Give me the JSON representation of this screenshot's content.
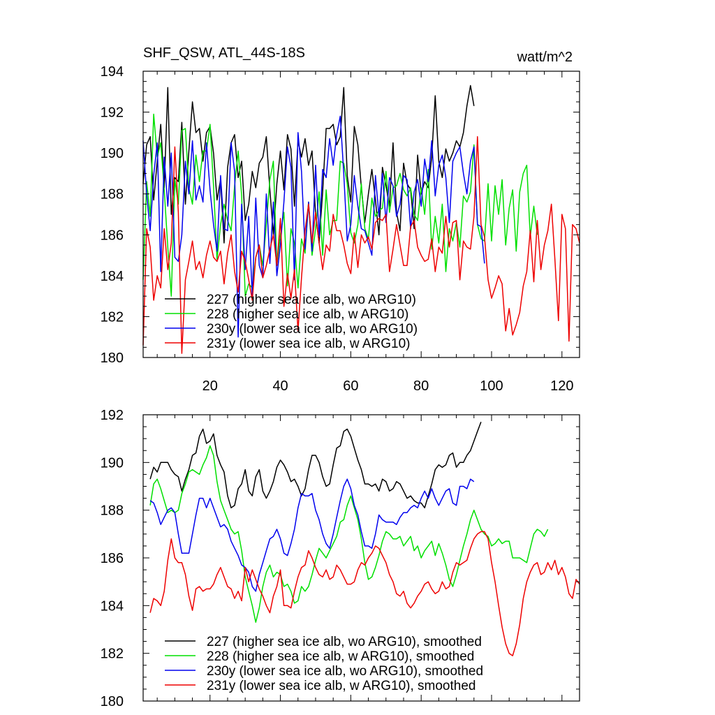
{
  "chart_data": [
    {
      "type": "line",
      "title": "SHF_QSW, ATL_44S-18S",
      "units": "watt/m^2",
      "xlim": [
        1,
        125
      ],
      "ylim": [
        180,
        194
      ],
      "xticks": [
        20,
        40,
        60,
        80,
        100,
        120
      ],
      "yticks": [
        180,
        182,
        184,
        186,
        188,
        190,
        192,
        194
      ],
      "show_x_tick_labels": true,
      "legend_position": "bottom-left",
      "series": [
        {
          "name": "227 (higher sea ice alb, wo ARG10)",
          "color": "#000000",
          "x_start": 1,
          "values": [
            188.5,
            190.4,
            190.8,
            187.7,
            189.6,
            191.4,
            188.3,
            193.2,
            187.0,
            188.8,
            188.6,
            191.5,
            187.5,
            190.1,
            192.5,
            191.0,
            191.2,
            189.6,
            191.0,
            191.3,
            190.0,
            187.7,
            188.7,
            185.6,
            189.3,
            190.5,
            190.9,
            188.8,
            189.6,
            186.7,
            187.5,
            189.1,
            188.3,
            189.5,
            189.8,
            190.8,
            188.2,
            186.0,
            188.5,
            190.1,
            188.2,
            190.9,
            190.2,
            187.4,
            190.6,
            189.8,
            190.7,
            189.4,
            190.1,
            187.0,
            185.6,
            188.1,
            191.2,
            191.2,
            191.4,
            190.4,
            190.8,
            193.2,
            188.9,
            187.6,
            191.3,
            190.4,
            188.3,
            186.6,
            188.0,
            189.2,
            187.7,
            186.0,
            189.3,
            188.4,
            187.4,
            190.5,
            187.1,
            186.2,
            189.5,
            188.5,
            188.2,
            186.3,
            189.9,
            188.0,
            188.6,
            188.3,
            189.8,
            192.8,
            189.6,
            188.8,
            190.2,
            189.6,
            190.0,
            190.6,
            190.3,
            191.0,
            192.3,
            193.3,
            192.3
          ]
        },
        {
          "name": "228 (higher sea ice alb, w ARG10)",
          "color": "#00e000",
          "x_start": 1,
          "values": [
            183.8,
            188.6,
            186.9,
            191.9,
            189.8,
            190.5,
            188.2,
            185.4,
            183.0,
            188.7,
            187.5,
            191.1,
            191.2,
            188.3,
            187.5,
            189.9,
            188.6,
            190.1,
            190.1,
            191.4,
            188.4,
            184.8,
            186.5,
            187.5,
            186.7,
            186.2,
            188.4,
            190.1,
            187.9,
            183.0,
            183.6,
            183.4,
            184.9,
            185.5,
            184.5,
            186.5,
            188.7,
            189.6,
            184.5,
            186.0,
            187.1,
            183.5,
            186.3,
            185.6,
            183.4,
            185.8,
            185.1,
            187.6,
            185.0,
            186.3,
            188.1,
            185.0,
            188.2,
            186.0,
            186.7,
            186.7,
            189.6,
            189.5,
            188.5,
            186.1,
            185.6,
            186.5,
            188.5,
            186.3,
            185.8,
            187.8,
            186.9,
            187.2,
            187.3,
            189.1,
            187.1,
            188.3,
            188.4,
            189.0,
            188.2,
            187.9,
            188.3,
            187.0,
            186.7,
            188.3,
            187.0,
            189.2,
            185.3,
            186.9,
            185.6,
            187.5,
            184.2,
            186.3,
            185.7,
            186.6,
            185.4,
            187.9,
            187.6,
            188.1,
            190.4,
            186.5,
            185.8,
            185.7,
            188.5,
            185.7,
            188.4,
            187.0,
            188.7,
            185.5,
            187.3,
            188.2,
            185.2,
            188.1,
            189.0,
            189.4,
            185.9,
            187.4,
            186.0
          ]
        },
        {
          "name": "230y (lower sea ice alb, wo ARG10)",
          "color": "#0000ee",
          "x_start": 1,
          "values": [
            190.6,
            188.0,
            186.2,
            188.9,
            190.5,
            184.2,
            189.8,
            187.4,
            190.0,
            184.9,
            184.7,
            186.0,
            189.6,
            188.0,
            190.6,
            187.7,
            188.4,
            187.6,
            190.5,
            188.2,
            186.5,
            185.2,
            188.9,
            186.3,
            186.2,
            190.5,
            189.1,
            181.0,
            187.5,
            184.3,
            186.9,
            183.0,
            187.8,
            184.5,
            183.9,
            188.0,
            184.6,
            187.6,
            184.0,
            185.5,
            187.6,
            190.3,
            189.3,
            183.8,
            191.0,
            189.1,
            185.3,
            187.6,
            185.2,
            189.4,
            185.9,
            189.2,
            188.8,
            190.7,
            189.4,
            190.9,
            191.8,
            189.0,
            185.7,
            186.5,
            188.9,
            187.4,
            186.3,
            186.2,
            185.6,
            185.0,
            188.9,
            186.9,
            189.0,
            186.6,
            188.8,
            188.4,
            186.9,
            187.5,
            188.9,
            188.7,
            186.3,
            188.1,
            188.7,
            187.4,
            189.7,
            188.6,
            190.6,
            187.9,
            189.4,
            189.9,
            188.8,
            186.6,
            189.6,
            190.0,
            190.3,
            189.0,
            188.0,
            189.6,
            190.3,
            186.5,
            186.4,
            184.6
          ]
        },
        {
          "name": "231y (lower sea ice alb, w ARG10)",
          "color": "#ee0000",
          "x_start": 1,
          "values": [
            180.6,
            186.3,
            185.4,
            182.8,
            184.0,
            183.4,
            186.3,
            184.3,
            185.6,
            190.3,
            187.1,
            180.2,
            183.8,
            184.7,
            185.7,
            184.3,
            184.7,
            183.9,
            185.0,
            185.7,
            184.9,
            184.7,
            185.2,
            183.6,
            185.1,
            186.0,
            184.2,
            183.2,
            185.2,
            184.7,
            183.8,
            182.8,
            184.9,
            185.5,
            183.9,
            184.5,
            185.3,
            186.0,
            184.5,
            186.8,
            182.5,
            184.1,
            182.9,
            184.3,
            181.3,
            183.9,
            186.2,
            187.5,
            185.6,
            187.1,
            185.6,
            184.3,
            185.5,
            185.2,
            187.0,
            186.2,
            186.2,
            185.5,
            184.6,
            184.1,
            186.1,
            184.4,
            186.0,
            185.6,
            185.9,
            185.3,
            186.6,
            186.8,
            186.7,
            187.0,
            184.2,
            185.3,
            186.5,
            185.5,
            184.5,
            184.5,
            186.4,
            186.7,
            185.4,
            185.0,
            184.7,
            184.8,
            185.8,
            184.2,
            185.4,
            185.1,
            186.9,
            185.4,
            186.6,
            186.7,
            183.8,
            185.7,
            185.4,
            185.3,
            186.9,
            190.8,
            186.5,
            185.9,
            183.8,
            182.9,
            183.4,
            184.0,
            183.6,
            181.3,
            182.4,
            181.1,
            181.6,
            182.2,
            183.5,
            184.2,
            186.2,
            183.7,
            186.7,
            184.3,
            185.5,
            186.2,
            187.5,
            184.8,
            181.8,
            187.0,
            186.3,
            180.8,
            186.5,
            186.3,
            185.6
          ]
        }
      ]
    },
    {
      "type": "line",
      "title": "",
      "xlim": [
        1,
        125
      ],
      "ylim": [
        180,
        192
      ],
      "xticks": [
        20,
        40,
        60,
        80,
        100,
        120
      ],
      "yticks": [
        180,
        182,
        184,
        186,
        188,
        190,
        192
      ],
      "show_x_tick_labels": false,
      "legend_position": "bottom-left",
      "series": [
        {
          "name": "227 (higher sea ice alb, wo ARG10), smoothed",
          "color": "#000000",
          "x_start": 3,
          "values": [
            189.3,
            189.8,
            189.6,
            190.0,
            190.0,
            190.0,
            189.7,
            189.5,
            189.4,
            188.8,
            189.3,
            189.7,
            190.3,
            190.4,
            191.1,
            191.4,
            190.8,
            190.9,
            191.2,
            190.3,
            189.9,
            189.6,
            188.6,
            188.1,
            188.2,
            188.9,
            189.1,
            189.7,
            188.8,
            188.6,
            189.4,
            189.7,
            188.8,
            188.5,
            188.8,
            189.2,
            189.8,
            190.1,
            189.9,
            189.6,
            189.2,
            189.3,
            189.0,
            188.6,
            188.9,
            189.7,
            190.3,
            190.3,
            190.0,
            189.4,
            189.0,
            189.1,
            189.9,
            190.6,
            190.7,
            191.3,
            191.4,
            191.1,
            190.6,
            190.1,
            189.7,
            189.1,
            189.1,
            189.0,
            189.1,
            188.8,
            189.3,
            189.2,
            188.8,
            188.9,
            189.2,
            189.1,
            188.8,
            188.5,
            188.6,
            188.4,
            188.3,
            188.3,
            188.1,
            188.6,
            189.1,
            189.7,
            189.9,
            189.8,
            189.9,
            190.3,
            190.4,
            189.8,
            190.0,
            190.0,
            190.3,
            190.5,
            190.9,
            191.3,
            191.7
          ]
        },
        {
          "name": "228 (higher sea ice alb, w ARG10), smoothed",
          "color": "#00e000",
          "x_start": 3,
          "values": [
            188.2,
            189.1,
            189.3,
            188.9,
            188.4,
            187.9,
            188.0,
            187.9,
            188.0,
            188.7,
            189.1,
            189.6,
            189.7,
            189.6,
            189.5,
            189.9,
            190.2,
            190.7,
            190.3,
            189.2,
            188.4,
            188.0,
            187.6,
            187.2,
            187.0,
            187.1,
            186.3,
            185.2,
            184.6,
            184.0,
            183.3,
            183.9,
            184.8,
            185.4,
            185.7,
            185.2,
            185.4,
            185.3,
            184.8,
            184.9,
            184.6,
            184.1,
            184.2,
            184.8,
            184.6,
            184.8,
            185.3,
            185.9,
            186.4,
            186.2,
            186.0,
            186.3,
            186.6,
            186.9,
            187.5,
            187.6,
            188.2,
            188.6,
            188.1,
            187.6,
            186.8,
            185.8,
            185.1,
            185.2,
            185.6,
            186.1,
            186.7,
            187.1,
            187.0,
            186.8,
            186.8,
            186.9,
            186.5,
            186.7,
            186.9,
            186.3,
            186.5,
            186.0,
            186.3,
            186.5,
            186.7,
            186.1,
            186.6,
            186.2,
            185.7,
            185.1,
            184.8,
            185.3,
            185.9,
            186.5,
            187.0,
            187.6,
            188.0,
            187.6,
            187.2,
            187.0,
            186.9,
            186.5,
            186.6,
            186.8,
            186.6,
            186.7,
            186.7,
            186.0,
            186.0,
            186.0,
            185.9,
            185.8,
            186.4,
            187.0,
            187.2,
            187.1,
            186.9,
            187.2
          ]
        },
        {
          "name": "230y (lower sea ice alb, wo ARG10), smoothed",
          "color": "#0000ee",
          "x_start": 3,
          "values": [
            188.4,
            188.3,
            187.9,
            187.4,
            187.7,
            188.0,
            188.1,
            187.9,
            187.0,
            186.2,
            186.2,
            186.2,
            187.0,
            187.8,
            188.5,
            188.5,
            188.1,
            188.5,
            188.1,
            187.7,
            187.3,
            187.4,
            187.2,
            186.7,
            186.4,
            186.1,
            185.7,
            185.6,
            185.4,
            184.8,
            184.6,
            185.3,
            185.8,
            186.3,
            186.8,
            186.9,
            187.2,
            186.8,
            186.2,
            186.1,
            186.6,
            187.2,
            188.1,
            188.7,
            188.6,
            188.6,
            188.7,
            188.0,
            187.6,
            187.0,
            186.6,
            186.4,
            187.0,
            187.7,
            188.4,
            189.0,
            189.3,
            188.9,
            188.2,
            187.8,
            187.1,
            186.5,
            186.5,
            186.4,
            187.0,
            187.8,
            187.6,
            187.5,
            187.5,
            187.5,
            187.4,
            187.7,
            187.9,
            187.9,
            188.1,
            188.2,
            188.1,
            188.5,
            188.8,
            188.5,
            188.9,
            188.5,
            188.2,
            188.5,
            188.8,
            188.9,
            188.3,
            188.2,
            189.0,
            189.0,
            188.9,
            189.3,
            189.2
          ]
        },
        {
          "name": "231y (lower sea ice alb, w ARG10), smoothed",
          "color": "#ee0000",
          "x_start": 3,
          "values": [
            183.7,
            184.3,
            184.2,
            184.0,
            184.6,
            185.9,
            186.8,
            186.0,
            185.8,
            185.8,
            185.3,
            184.4,
            183.8,
            184.7,
            184.8,
            184.6,
            184.7,
            184.7,
            184.9,
            185.3,
            185.6,
            185.2,
            184.8,
            184.7,
            184.3,
            184.6,
            184.2,
            185.6,
            185.0,
            185.5,
            185.1,
            184.7,
            184.4,
            184.0,
            183.7,
            184.4,
            184.8,
            185.5,
            184.0,
            184.0,
            183.9,
            184.6,
            185.2,
            185.6,
            185.7,
            186.3,
            186.0,
            185.6,
            185.3,
            185.2,
            185.5,
            185.1,
            185.2,
            185.7,
            185.5,
            185.2,
            184.9,
            184.9,
            185.0,
            185.5,
            185.8,
            185.7,
            186.0,
            186.2,
            186.5,
            186.4,
            186.1,
            185.8,
            185.3,
            185.0,
            184.5,
            184.4,
            184.6,
            184.1,
            183.9,
            184.1,
            184.4,
            184.6,
            184.9,
            185.0,
            184.7,
            184.5,
            184.6,
            185.0,
            184.7,
            184.8,
            185.4,
            185.8,
            185.7,
            185.8,
            185.9,
            186.4,
            186.8,
            187.0,
            187.1,
            187.1,
            186.8,
            185.8,
            185.0,
            184.0,
            183.1,
            182.4,
            182.0,
            181.9,
            182.4,
            183.2,
            184.3,
            185.0,
            185.4,
            185.7,
            185.8,
            185.3,
            185.4,
            185.8,
            185.5,
            185.9,
            185.3,
            185.6,
            185.2,
            184.5,
            184.3,
            185.1,
            184.9
          ]
        }
      ]
    }
  ]
}
